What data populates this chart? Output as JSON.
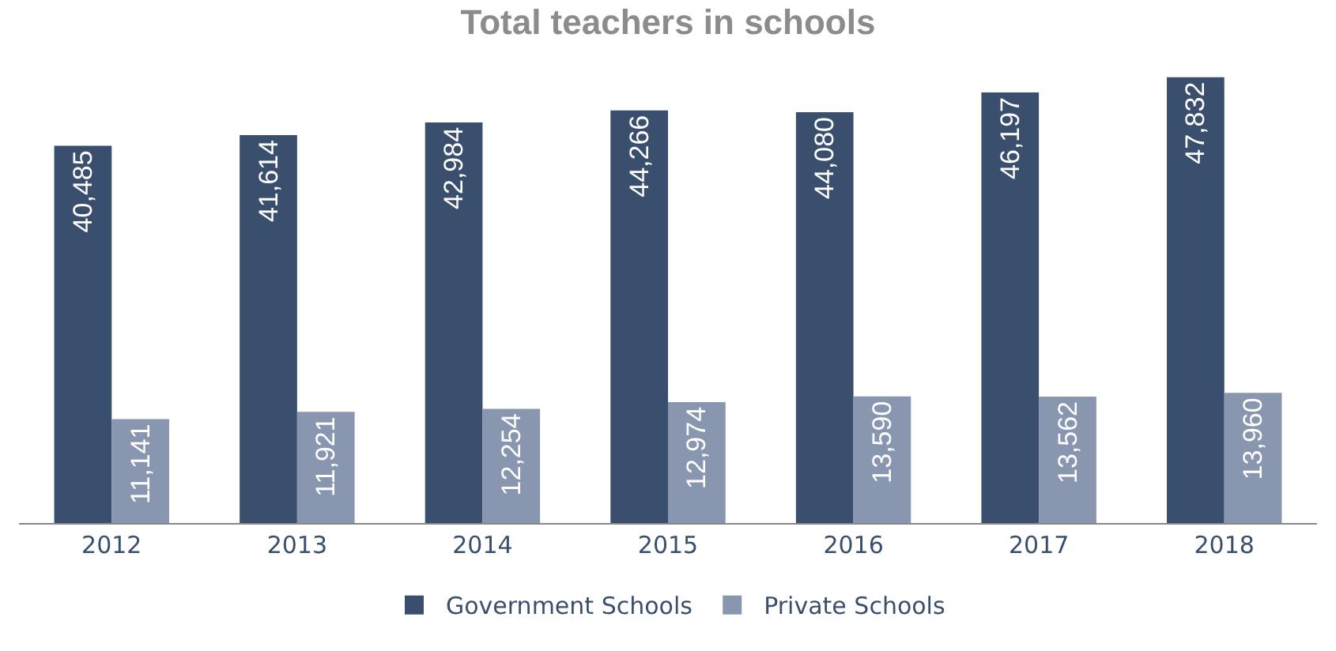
{
  "chart_data": {
    "type": "bar",
    "title": "Total teachers in schools",
    "categories": [
      "2012",
      "2013",
      "2014",
      "2015",
      "2016",
      "2017",
      "2018"
    ],
    "series": [
      {
        "name": "Government Schools",
        "color": "#3a4e6d",
        "values": [
          40485,
          41614,
          42984,
          44266,
          44080,
          46197,
          47832
        ],
        "value_labels": [
          "40,485",
          "41,614",
          "42,984",
          "44,266",
          "44,080",
          "46,197",
          "47,832"
        ]
      },
      {
        "name": "Private Schools",
        "color": "#8896b0",
        "values": [
          11141,
          11921,
          12254,
          12974,
          13590,
          13562,
          13960
        ],
        "value_labels": [
          "11,141",
          "11,921",
          "12,254",
          "12,974",
          "13,590",
          "13,562",
          "13,960"
        ]
      }
    ],
    "grid": false,
    "legend": "bottom",
    "tick_labels": "x"
  }
}
